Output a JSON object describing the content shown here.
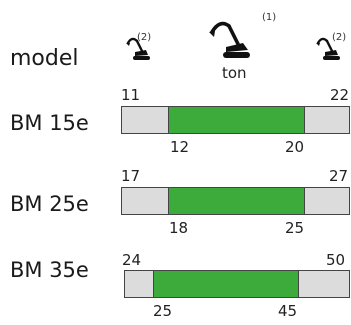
{
  "header": {
    "label": "model",
    "unit": "ton",
    "notes": {
      "left": "(2)",
      "center": "(1)",
      "right": "(2)"
    },
    "icons": {
      "left": "small-excavator-icon",
      "center": "excavator-icon",
      "right": "small-excavator-icon"
    }
  },
  "colors": {
    "range_fill": "#3cab3c",
    "bar_background": "#dcdcdc",
    "bar_border": "#444444"
  },
  "rows": [
    {
      "model": "BM 15e",
      "outer_min": "11",
      "outer_max": "22",
      "inner_min": "12",
      "inner_max": "20"
    },
    {
      "model": "BM 25e",
      "outer_min": "17",
      "outer_max": "27",
      "inner_min": "18",
      "inner_max": "25"
    },
    {
      "model": "BM 35e",
      "outer_min": "24",
      "outer_max": "50",
      "inner_min": "25",
      "inner_max": "45"
    }
  ]
}
